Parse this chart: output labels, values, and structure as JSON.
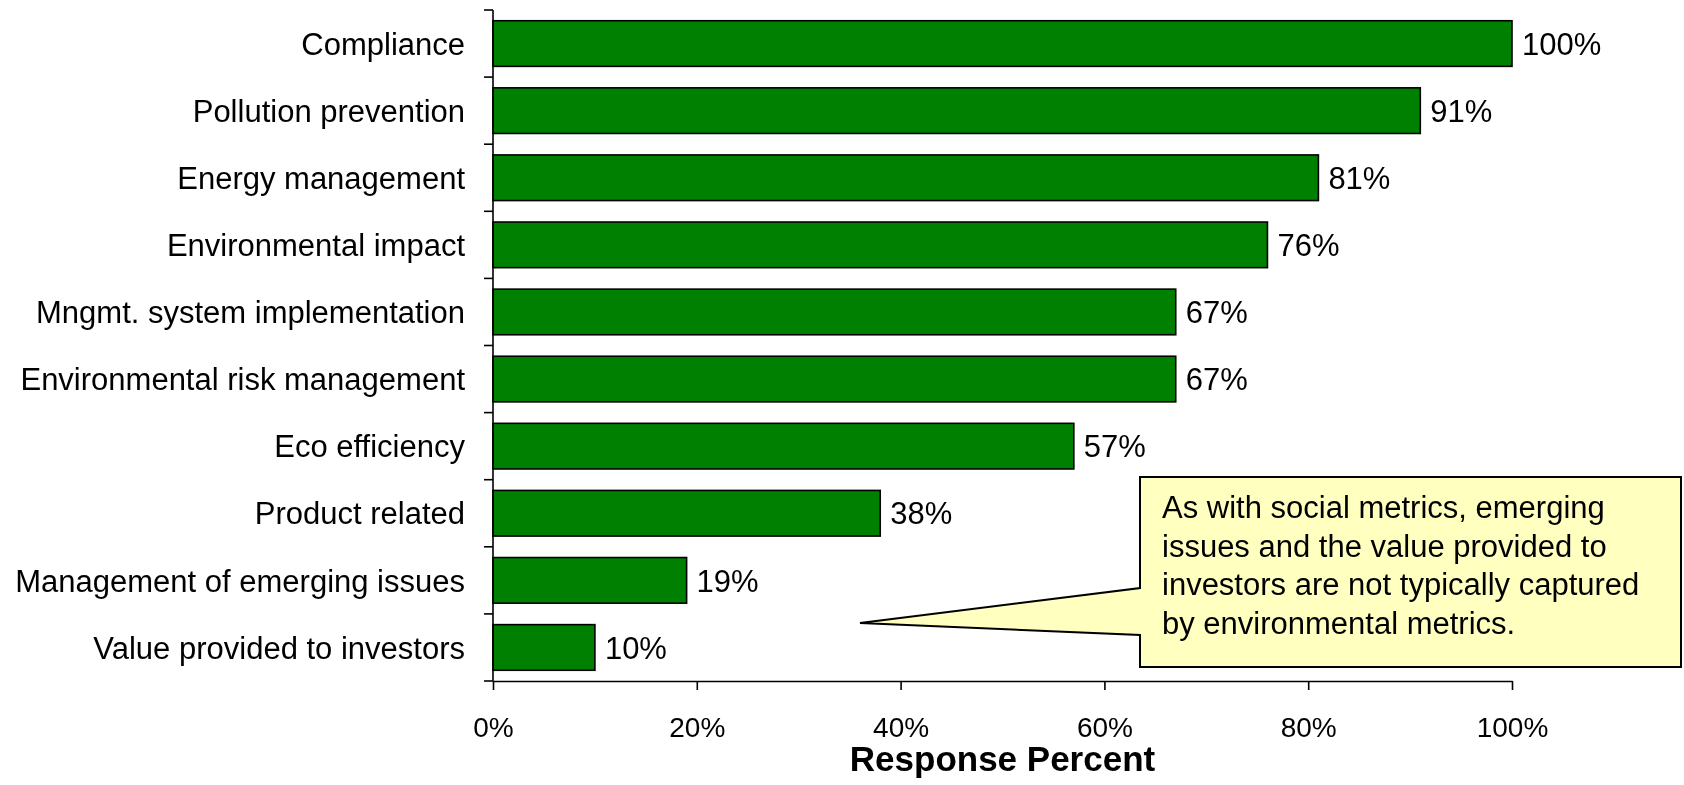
{
  "chart_data": {
    "type": "bar",
    "orientation": "horizontal",
    "xlabel": "Response Percent",
    "categories": [
      "Compliance",
      "Pollution prevention",
      "Energy management",
      "Environmental impact",
      "Mngmt. system implementation",
      "Environmental risk management",
      "Eco efficiency",
      "Product related",
      "Management of emerging issues",
      "Value provided to investors"
    ],
    "values": [
      100,
      91,
      81,
      76,
      67,
      67,
      57,
      38,
      19,
      10
    ],
    "value_labels": [
      "100%",
      "91%",
      "81%",
      "76%",
      "67%",
      "67%",
      "57%",
      "38%",
      "19%",
      "10%"
    ],
    "color": "#008000",
    "xlim": [
      0,
      100
    ],
    "xticks": [
      {
        "value": 0,
        "label": "0%"
      },
      {
        "value": 20,
        "label": "20%"
      },
      {
        "value": 40,
        "label": "40%"
      },
      {
        "value": 60,
        "label": "60%"
      },
      {
        "value": 80,
        "label": "80%"
      },
      {
        "value": 100,
        "label": "100%"
      }
    ],
    "annotations": [
      "As with social metrics, emerging issues and the value provided to investors are not typically captured by environmental metrics."
    ]
  }
}
